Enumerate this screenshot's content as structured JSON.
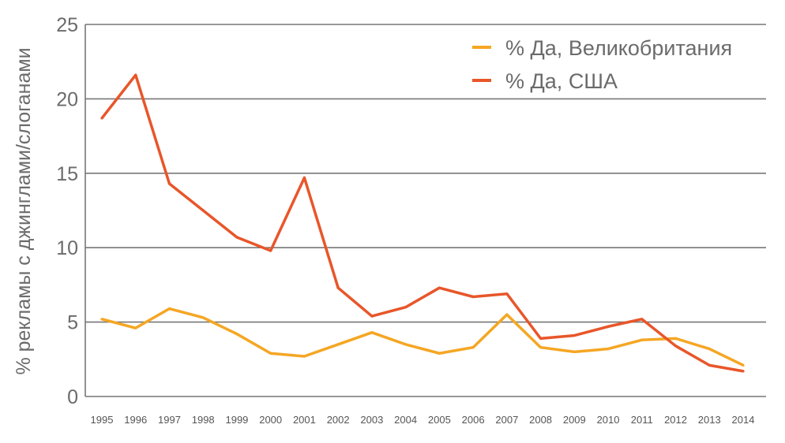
{
  "chart_data": {
    "type": "line",
    "title": "",
    "xlabel": "",
    "ylabel": "% рекламы с джинглами/слоганами",
    "ylim": [
      0,
      25
    ],
    "yticks": [
      "0",
      "5",
      "10",
      "15",
      "20",
      "25"
    ],
    "categories": [
      "1995",
      "1996",
      "1997",
      "1998",
      "1999",
      "2000",
      "2001",
      "2002",
      "2003",
      "2004",
      "2005",
      "2006",
      "2007",
      "2008",
      "2009",
      "2010",
      "2011",
      "2012",
      "2013",
      "2014"
    ],
    "legend_position": "top-right",
    "series": [
      {
        "name": "% Да, Великобритания",
        "color": "#F5A623",
        "values": [
          5.2,
          4.6,
          5.9,
          5.3,
          4.2,
          2.9,
          2.7,
          3.5,
          4.3,
          3.5,
          2.9,
          3.3,
          5.5,
          3.3,
          3.0,
          3.2,
          3.8,
          3.9,
          3.2,
          2.1
        ]
      },
      {
        "name": "% Да, США",
        "color": "#E8562A",
        "values": [
          18.7,
          21.6,
          14.3,
          12.5,
          10.7,
          9.8,
          14.7,
          7.3,
          5.4,
          6.0,
          7.3,
          6.7,
          6.9,
          3.9,
          4.1,
          4.7,
          5.2,
          3.4,
          2.1,
          1.7
        ]
      }
    ]
  }
}
